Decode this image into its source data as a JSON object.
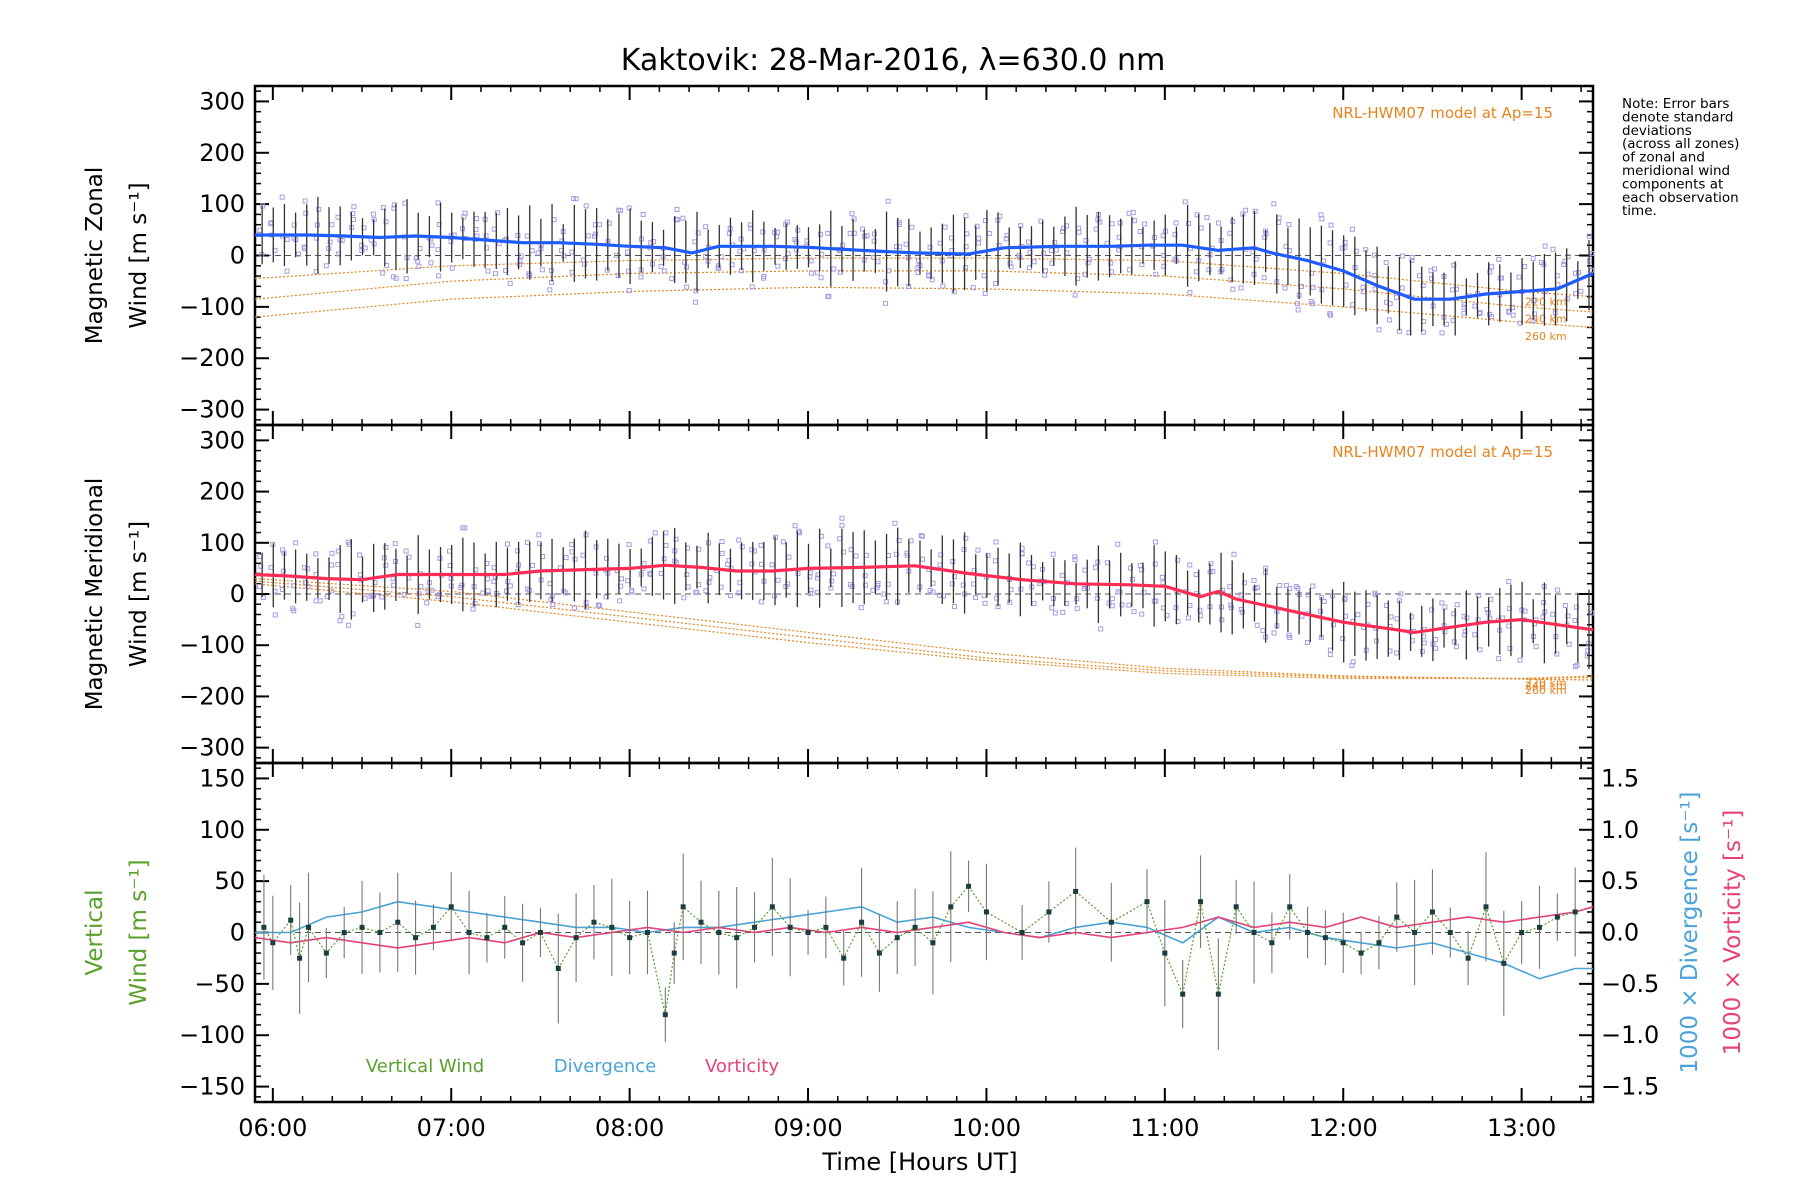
{
  "chart_data": {
    "title": "Kaktovik: 28-Mar-2016, λ=630.0 nm",
    "xlabel": "Time [Hours UT]",
    "x_range": [
      5.9,
      13.4
    ],
    "x_ticks": [
      6,
      7,
      8,
      9,
      10,
      11,
      12,
      13
    ],
    "x_tick_labels": [
      "06:00",
      "07:00",
      "08:00",
      "09:00",
      "10:00",
      "11:00",
      "12:00",
      "13:00"
    ],
    "colors": {
      "zonal": "#1f5cff",
      "meridional": "#ff2d55",
      "vertical": "#5aa02c",
      "divergence": "#4aa3d8",
      "vorticity": "#e8407a",
      "model": "#e8831e",
      "zone_points": "#a89be6"
    },
    "note": {
      "lines": [
        "Note: Error bars",
        "denote standard",
        "deviations",
        "(across all zones)",
        "of zonal and",
        "meridional wind",
        "components at",
        "each observation",
        "time."
      ]
    },
    "panels": [
      {
        "id": "zonal",
        "type": "line",
        "ylabel_line1": "Magnetic Zonal",
        "ylabel_line2": "Wind [m s⁻¹]",
        "ylim": [
          -330,
          330
        ],
        "y_ticks": [
          -300,
          -200,
          -100,
          0,
          100,
          200,
          300
        ],
        "y_tick_labels": [
          "−300",
          "−200",
          "−100",
          "0",
          "100",
          "200",
          "300"
        ],
        "model_label": "NRL-HWM07 model at Ap=15",
        "model_altitudes": [
          "220 km",
          "240 km",
          "260 km"
        ],
        "series": [
          {
            "name": "",
            "x": [
              5.9,
              6.2,
              6.4,
              6.6,
              6.8,
              7.0,
              7.2,
              7.4,
              7.6,
              7.8,
              8.0,
              8.2,
              8.35,
              8.5,
              8.8,
              9.0,
              9.3,
              9.6,
              9.9,
              10.1,
              10.4,
              10.7,
              10.9,
              11.1,
              11.3,
              11.5,
              11.6,
              11.8,
              12.0,
              12.2,
              12.4,
              12.6,
              12.8,
              13.0,
              13.2,
              13.4
            ],
            "y": [
              40,
              40,
              38,
              35,
              38,
              35,
              30,
              25,
              25,
              22,
              18,
              15,
              5,
              18,
              18,
              16,
              10,
              5,
              3,
              15,
              18,
              18,
              20,
              20,
              10,
              15,
              5,
              -10,
              -30,
              -60,
              -85,
              -85,
              -75,
              -70,
              -65,
              -35
            ]
          }
        ],
        "models": [
          {
            "name": "220 km",
            "x": [
              5.9,
              7.0,
              8.0,
              9.0,
              10.0,
              11.0,
              12.0,
              13.0,
              13.4
            ],
            "y": [
              -45,
              -20,
              -10,
              -5,
              -5,
              -10,
              -35,
              -70,
              -80
            ]
          },
          {
            "name": "240 km",
            "x": [
              5.9,
              7.0,
              8.0,
              9.0,
              10.0,
              11.0,
              12.0,
              13.0,
              13.4
            ],
            "y": [
              -85,
              -50,
              -35,
              -30,
              -30,
              -40,
              -65,
              -100,
              -110
            ]
          },
          {
            "name": "260 km",
            "x": [
              5.9,
              7.0,
              8.0,
              9.0,
              10.0,
              11.0,
              12.0,
              13.0,
              13.4
            ],
            "y": [
              -120,
              -85,
              -70,
              -62,
              -65,
              -75,
              -100,
              -130,
              -140
            ]
          }
        ]
      },
      {
        "id": "meridional",
        "type": "line",
        "ylabel_line1": "Magnetic Meridional",
        "ylabel_line2": "Wind [m s⁻¹]",
        "ylim": [
          -330,
          330
        ],
        "y_ticks": [
          -300,
          -200,
          -100,
          0,
          100,
          200,
          300
        ],
        "y_tick_labels": [
          "−300",
          "−200",
          "−100",
          "0",
          "100",
          "200",
          "300"
        ],
        "model_label": "NRL-HWM07 model at Ap=15",
        "model_altitudes": [
          "220 km",
          "240 km",
          "260 km"
        ],
        "series": [
          {
            "name": "",
            "x": [
              5.9,
              6.1,
              6.3,
              6.5,
              6.7,
              7.0,
              7.3,
              7.5,
              7.8,
              8.0,
              8.2,
              8.4,
              8.6,
              8.8,
              9.0,
              9.3,
              9.6,
              9.9,
              10.2,
              10.5,
              10.8,
              11.0,
              11.2,
              11.3,
              11.4,
              11.6,
              11.8,
              12.0,
              12.2,
              12.4,
              12.6,
              12.8,
              13.0,
              13.2,
              13.4
            ],
            "y": [
              38,
              35,
              30,
              28,
              38,
              38,
              38,
              45,
              48,
              50,
              56,
              52,
              45,
              45,
              50,
              52,
              55,
              40,
              28,
              20,
              18,
              15,
              -5,
              5,
              -10,
              -25,
              -40,
              -55,
              -65,
              -75,
              -65,
              -55,
              -50,
              -60,
              -70
            ]
          }
        ],
        "models": [
          {
            "name": "220 km",
            "x": [
              5.9,
              7.0,
              8.0,
              9.0,
              10.0,
              11.0,
              12.0,
              13.0,
              13.4
            ],
            "y": [
              20,
              -15,
              -55,
              -95,
              -130,
              -155,
              -165,
              -165,
              -160
            ]
          },
          {
            "name": "240 km",
            "x": [
              5.9,
              7.0,
              8.0,
              9.0,
              10.0,
              11.0,
              12.0,
              13.0,
              13.4
            ],
            "y": [
              25,
              -5,
              -45,
              -85,
              -125,
              -150,
              -162,
              -165,
              -163
            ]
          },
          {
            "name": "260 km",
            "x": [
              5.9,
              7.0,
              8.0,
              9.0,
              10.0,
              11.0,
              12.0,
              13.0,
              13.4
            ],
            "y": [
              30,
              5,
              -35,
              -75,
              -115,
              -145,
              -160,
              -166,
              -168
            ]
          }
        ]
      },
      {
        "id": "vertical",
        "type": "line",
        "ylabel_line1": "Vertical",
        "ylabel_line2": "Wind [m s⁻¹]",
        "ylim": [
          -165,
          165
        ],
        "y_ticks": [
          -150,
          -100,
          -50,
          0,
          50,
          100,
          150
        ],
        "y_tick_labels": [
          "−150",
          "−100",
          "−50",
          "0",
          "50",
          "100",
          "150"
        ],
        "y2_label_divergence": "1000 × Divergence [s⁻¹]",
        "y2_label_vorticity": "1000 × Vorticity [s⁻¹]",
        "y2_lim": [
          -1.65,
          1.65
        ],
        "y2_ticks": [
          -1.5,
          -1.0,
          -0.5,
          0.0,
          0.5,
          1.0,
          1.5
        ],
        "y2_tick_labels": [
          "−1.5",
          "−1.0",
          "−0.5",
          "0.0",
          "0.5",
          "1.0",
          "1.5"
        ],
        "legend": [
          "Vertical Wind",
          "Divergence",
          "Vorticity"
        ],
        "series": [
          {
            "name": "Vertical Wind",
            "axis": "left",
            "x": [
              5.95,
              6.0,
              6.1,
              6.15,
              6.2,
              6.3,
              6.4,
              6.5,
              6.6,
              6.7,
              6.8,
              6.9,
              7.0,
              7.1,
              7.2,
              7.3,
              7.4,
              7.5,
              7.6,
              7.7,
              7.8,
              7.9,
              8.0,
              8.1,
              8.2,
              8.25,
              8.3,
              8.4,
              8.5,
              8.6,
              8.7,
              8.8,
              8.9,
              9.0,
              9.1,
              9.2,
              9.3,
              9.4,
              9.5,
              9.6,
              9.7,
              9.8,
              9.9,
              10.0,
              10.2,
              10.35,
              10.5,
              10.7,
              10.9,
              11.0,
              11.1,
              11.2,
              11.3,
              11.4,
              11.5,
              11.6,
              11.7,
              11.8,
              11.9,
              12.0,
              12.1,
              12.2,
              12.3,
              12.4,
              12.5,
              12.6,
              12.7,
              12.8,
              12.9,
              13.0,
              13.1,
              13.2,
              13.3
            ],
            "y": [
              5,
              -10,
              12,
              -25,
              5,
              -20,
              0,
              5,
              0,
              10,
              -5,
              5,
              25,
              0,
              -5,
              5,
              -10,
              0,
              -35,
              -5,
              10,
              5,
              -5,
              0,
              -80,
              -20,
              25,
              10,
              0,
              -5,
              5,
              25,
              5,
              0,
              5,
              -25,
              10,
              -20,
              -5,
              5,
              -10,
              25,
              45,
              20,
              0,
              20,
              40,
              10,
              30,
              -20,
              -60,
              30,
              -60,
              25,
              0,
              -10,
              25,
              0,
              -5,
              -10,
              -20,
              -10,
              15,
              0,
              20,
              0,
              -25,
              25,
              -30,
              0,
              5,
              15,
              20
            ]
          },
          {
            "name": "Divergence",
            "axis": "right",
            "x": [
              5.9,
              6.1,
              6.3,
              6.5,
              6.7,
              6.9,
              7.1,
              7.3,
              7.5,
              7.7,
              7.9,
              8.1,
              8.3,
              8.5,
              8.7,
              8.9,
              9.1,
              9.3,
              9.5,
              9.7,
              9.9,
              10.1,
              10.3,
              10.5,
              10.7,
              10.9,
              11.1,
              11.3,
              11.5,
              11.7,
              11.9,
              12.1,
              12.3,
              12.5,
              12.7,
              12.9,
              13.1,
              13.3,
              13.4
            ],
            "y": [
              0.0,
              0.0,
              0.15,
              0.2,
              0.3,
              0.25,
              0.2,
              0.15,
              0.1,
              0.05,
              0.05,
              0.0,
              0.05,
              0.05,
              0.1,
              0.15,
              0.2,
              0.25,
              0.1,
              0.15,
              0.05,
              0.0,
              -0.05,
              0.05,
              0.1,
              0.05,
              -0.1,
              0.15,
              0.0,
              0.05,
              -0.05,
              -0.1,
              -0.15,
              -0.1,
              -0.2,
              -0.3,
              -0.45,
              -0.35,
              -0.35
            ]
          },
          {
            "name": "Vorticity",
            "axis": "right",
            "x": [
              5.9,
              6.1,
              6.3,
              6.5,
              6.7,
              6.9,
              7.1,
              7.3,
              7.5,
              7.7,
              7.9,
              8.1,
              8.3,
              8.5,
              8.7,
              8.9,
              9.1,
              9.3,
              9.5,
              9.7,
              9.9,
              10.1,
              10.3,
              10.5,
              10.7,
              10.9,
              11.1,
              11.3,
              11.5,
              11.7,
              11.9,
              12.1,
              12.3,
              12.5,
              12.7,
              12.9,
              13.1,
              13.3,
              13.4
            ],
            "y": [
              -0.05,
              -0.1,
              -0.05,
              -0.1,
              -0.15,
              -0.1,
              -0.05,
              -0.1,
              0.0,
              -0.05,
              0.0,
              0.05,
              0.0,
              0.05,
              0.0,
              0.05,
              0.0,
              0.05,
              0.0,
              0.05,
              0.1,
              0.0,
              -0.05,
              0.0,
              -0.05,
              0.0,
              0.05,
              0.15,
              0.05,
              0.1,
              0.05,
              0.15,
              0.05,
              0.1,
              0.15,
              0.1,
              0.15,
              0.2,
              0.25
            ]
          }
        ]
      }
    ]
  }
}
